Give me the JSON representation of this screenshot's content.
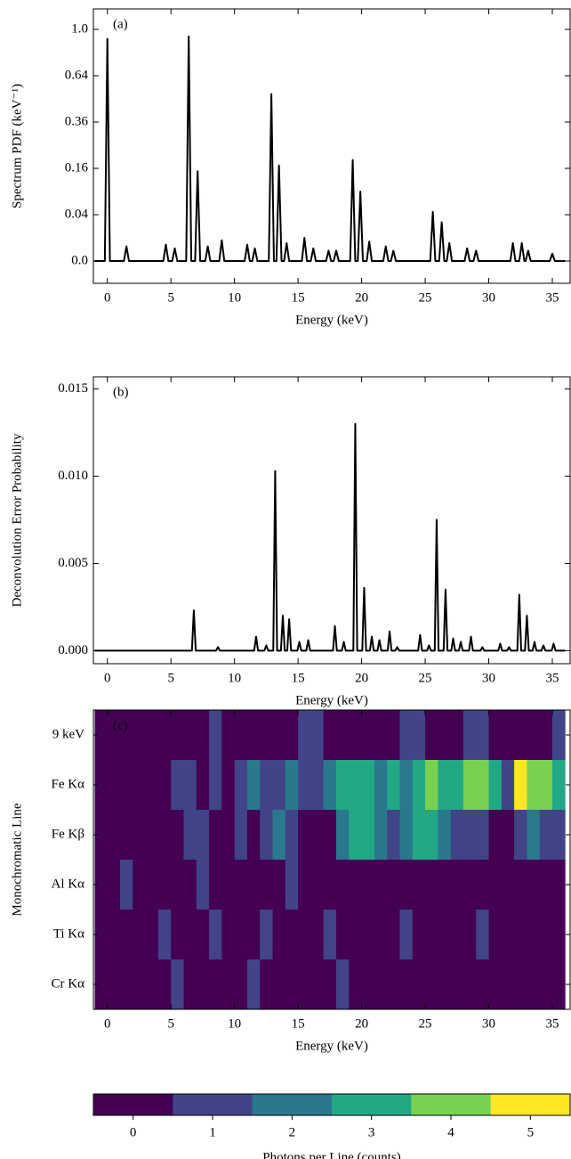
{
  "chart_data": [
    {
      "type": "line",
      "annotation": "(a)",
      "xlabel": "Energy (keV)",
      "ylabel": "Spectrum PDF (keV⁻¹)",
      "color": "#000000",
      "yscale": "sqrt",
      "xlim": [
        -1.1,
        36.4
      ],
      "xticks": [
        0,
        5,
        10,
        15,
        20,
        25,
        30,
        35
      ],
      "ylim": [
        0,
        1
      ],
      "yticks": [
        {
          "value": 0,
          "label": "0.0"
        },
        0.04,
        0.16,
        0.36,
        0.64,
        {
          "value": 1,
          "label": "1.0"
        }
      ],
      "x": [
        -1,
        -0.2,
        0,
        0.2,
        1.3,
        1.5,
        1.7,
        4.4,
        4.6,
        4.8,
        5.1,
        5.3,
        5.5,
        6.2,
        6.4,
        6.6,
        6.9,
        7.1,
        7.3,
        7.7,
        7.9,
        8.1,
        8.8,
        9.0,
        9.2,
        10.8,
        11.0,
        11.2,
        11.4,
        11.6,
        11.8,
        12.7,
        12.9,
        13.1,
        13.3,
        13.5,
        13.7,
        13.9,
        14.1,
        14.3,
        15.3,
        15.5,
        15.7,
        16.0,
        16.2,
        16.4,
        17.2,
        17.4,
        17.6,
        17.8,
        18.0,
        18.2,
        19.1,
        19.3,
        19.5,
        19.7,
        19.9,
        20.1,
        20.4,
        20.6,
        20.8,
        21.7,
        21.9,
        22.1,
        22.3,
        22.5,
        22.7,
        25.4,
        25.6,
        25.8,
        26.1,
        26.3,
        26.5,
        26.7,
        26.9,
        27.1,
        28.1,
        28.3,
        28.5,
        28.8,
        29.0,
        29.2,
        31.7,
        31.9,
        32.1,
        32.4,
        32.6,
        32.8,
        32.9,
        33.1,
        33.3,
        34.8,
        35.0,
        35.2,
        36
      ],
      "values": [
        0,
        0,
        0.92,
        0,
        0,
        0.004,
        0,
        0,
        0.005,
        0,
        0,
        0.003,
        0,
        0,
        0.94,
        0,
        0,
        0.15,
        0,
        0,
        0.004,
        0,
        0,
        0.008,
        0,
        0,
        0.005,
        0,
        0,
        0.003,
        0,
        0,
        0.52,
        0,
        0,
        0.17,
        0,
        0,
        0.006,
        0,
        0,
        0.01,
        0,
        0,
        0.003,
        0,
        0,
        0.002,
        0,
        0,
        0.002,
        0,
        0,
        0.19,
        0,
        0,
        0.09,
        0,
        0,
        0.007,
        0,
        0,
        0.004,
        0,
        0,
        0.002,
        0,
        0,
        0.045,
        0,
        0,
        0.028,
        0,
        0,
        0.006,
        0,
        0,
        0.003,
        0,
        0,
        0.002,
        0,
        0,
        0.006,
        0,
        0,
        0.006,
        0,
        0,
        0.002,
        0,
        0,
        0.001,
        0,
        0
      ]
    },
    {
      "type": "line",
      "annotation": "(b)",
      "xlabel": "Energy (keV)",
      "ylabel": "Deconvolution Error Probability",
      "color": "#000000",
      "xlim": [
        -1.1,
        36.4
      ],
      "xticks": [
        0,
        5,
        10,
        15,
        20,
        25,
        30,
        35
      ],
      "ylim": [
        -0.00075,
        0.0157
      ],
      "yticks": [
        {
          "value": 0,
          "label": "0.000"
        },
        {
          "value": 0.005,
          "label": "0.005"
        },
        {
          "value": 0.01,
          "label": "0.010"
        },
        {
          "value": 0.015,
          "label": "0.015"
        }
      ],
      "x": [
        -1,
        6.65,
        6.8,
        6.95,
        8.55,
        8.7,
        8.85,
        11.55,
        11.7,
        11.85,
        12.35,
        12.5,
        12.65,
        13.05,
        13.2,
        13.35,
        13.65,
        13.8,
        13.95,
        14.15,
        14.3,
        14.45,
        14.95,
        15.1,
        15.25,
        15.65,
        15.8,
        15.95,
        17.75,
        17.9,
        18.05,
        18.45,
        18.6,
        18.75,
        19.35,
        19.5,
        19.65,
        20.05,
        20.2,
        20.35,
        20.65,
        20.8,
        20.95,
        21.25,
        21.4,
        21.55,
        22.05,
        22.2,
        22.35,
        22.65,
        22.8,
        22.95,
        24.45,
        24.6,
        24.75,
        25.15,
        25.3,
        25.45,
        25.75,
        25.9,
        26.05,
        26.45,
        26.6,
        26.75,
        27.05,
        27.2,
        27.35,
        27.65,
        27.8,
        27.95,
        28.45,
        28.6,
        28.75,
        29.35,
        29.5,
        29.65,
        30.75,
        30.9,
        31.05,
        31.45,
        31.6,
        31.75,
        32.25,
        32.4,
        32.55,
        32.85,
        33.0,
        33.15,
        33.45,
        33.6,
        33.75,
        34.15,
        34.3,
        34.45,
        34.95,
        35.1,
        35.25,
        36
      ],
      "values": [
        0,
        0,
        0.0023,
        0,
        0,
        0.0002,
        0,
        0,
        0.0008,
        0,
        0,
        0.0003,
        0,
        0,
        0.0103,
        0,
        0,
        0.002,
        0,
        0,
        0.0018,
        0,
        0,
        0.0005,
        0,
        0,
        0.0006,
        0,
        0,
        0.0014,
        0,
        0,
        0.0005,
        0,
        0,
        0.013,
        0,
        0,
        0.0036,
        0,
        0,
        0.0008,
        0,
        0,
        0.0006,
        0,
        0,
        0.0011,
        0,
        0,
        0.0002,
        0,
        0,
        0.0009,
        0,
        0,
        0.0003,
        0,
        0,
        0.0075,
        0,
        0,
        0.0035,
        0,
        0,
        0.0007,
        0,
        0,
        0.0005,
        0,
        0,
        0.0008,
        0,
        0,
        0.0002,
        0,
        0,
        0.0004,
        0,
        0,
        0.0002,
        0,
        0,
        0.0032,
        0,
        0,
        0.002,
        0,
        0,
        0.0005,
        0,
        0,
        0.0003,
        0,
        0,
        0.0004,
        0,
        0
      ]
    },
    {
      "type": "heatmap",
      "annotation": "(c)",
      "xlabel": "Energy (keV)",
      "ylabel": "Monochromatic Line",
      "xlim": [
        -1.1,
        36.4
      ],
      "xticks": [
        0,
        5,
        10,
        15,
        20,
        25,
        30,
        35
      ],
      "rows": [
        "9 keV",
        "Fe Kα",
        "Fe Kβ",
        "Al Kα",
        "Ti Kα",
        "Cr Kα"
      ],
      "x_edges": [
        -1,
        0,
        1,
        2,
        3,
        4,
        5,
        6,
        7,
        8,
        9,
        10,
        11,
        12,
        13,
        14,
        15,
        16,
        17,
        18,
        19,
        20,
        21,
        22,
        23,
        24,
        25,
        26,
        27,
        28,
        29,
        30,
        31,
        32,
        33,
        34,
        35,
        36
      ],
      "z": [
        [
          0,
          0,
          0,
          0,
          0,
          0,
          0,
          0,
          0,
          1,
          0,
          0,
          0,
          0,
          0,
          0,
          1,
          1,
          0,
          0,
          0,
          0,
          0,
          0,
          1,
          1,
          0,
          0,
          0,
          1,
          1,
          0,
          0,
          0,
          0,
          0,
          1
        ],
        [
          0,
          0,
          0,
          0,
          0,
          0,
          1,
          1,
          0,
          1,
          0,
          1,
          2,
          1,
          1,
          2,
          1,
          1,
          2,
          3,
          3,
          3,
          2,
          3,
          2,
          3,
          4,
          3,
          3,
          4,
          4,
          3,
          1,
          5,
          4,
          4,
          3
        ],
        [
          0,
          0,
          0,
          0,
          0,
          0,
          0,
          1,
          1,
          0,
          0,
          1,
          0,
          1,
          2,
          1,
          0,
          0,
          0,
          2,
          3,
          3,
          2,
          1,
          2,
          3,
          3,
          2,
          1,
          1,
          1,
          0,
          0,
          1,
          2,
          1,
          1
        ],
        [
          0,
          0,
          1,
          0,
          0,
          0,
          0,
          0,
          1,
          0,
          0,
          0,
          0,
          0,
          0,
          1,
          0,
          0,
          0,
          0,
          0,
          0,
          0,
          0,
          0,
          0,
          0,
          0,
          0,
          0,
          0,
          0,
          0,
          0,
          0,
          0,
          0
        ],
        [
          0,
          0,
          0,
          0,
          0,
          1,
          0,
          0,
          0,
          1,
          0,
          0,
          0,
          1,
          0,
          0,
          0,
          0,
          1,
          0,
          0,
          0,
          0,
          0,
          1,
          0,
          0,
          0,
          0,
          0,
          1,
          0,
          0,
          0,
          0,
          0,
          0
        ],
        [
          0,
          0,
          0,
          0,
          0,
          0,
          1,
          0,
          0,
          0,
          0,
          0,
          1,
          0,
          0,
          0,
          0,
          0,
          0,
          1,
          0,
          0,
          0,
          0,
          0,
          0,
          0,
          0,
          0,
          0,
          0,
          0,
          0,
          0,
          0,
          0,
          0
        ]
      ],
      "colors": [
        "#440154",
        "#414487",
        "#2a788e",
        "#22a884",
        "#7ad151",
        "#fde725"
      ],
      "clim": [
        -0.5,
        5.5
      ],
      "cticks": [
        0,
        1,
        2,
        3,
        4,
        5
      ],
      "colorbar_label": "Photons per Line (counts)"
    }
  ]
}
